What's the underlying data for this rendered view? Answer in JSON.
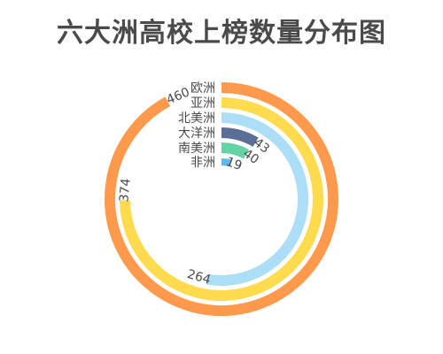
{
  "chart_data": {
    "type": "radial-bar",
    "title": "六大洲高校上榜数量分布图",
    "max": 500,
    "categories": [
      "欧洲",
      "亚洲",
      "北美洲",
      "大洋洲",
      "南美洲",
      "非洲"
    ],
    "values": [
      460,
      374,
      264,
      43,
      40,
      19
    ],
    "colors": [
      "#FF9A4D",
      "#FFDB4D",
      "#ACDEF7",
      "#5A6E96",
      "#64D4A8",
      "#5FB8F0"
    ]
  }
}
